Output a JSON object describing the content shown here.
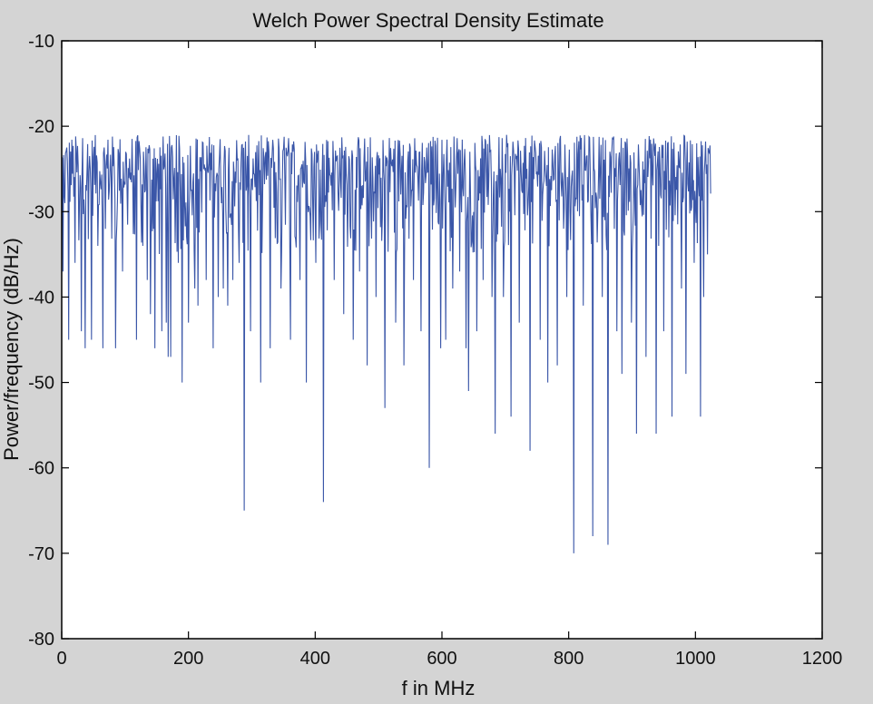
{
  "chart_data": {
    "type": "line",
    "title": "Welch Power Spectral Density Estimate",
    "xlabel": "f in MHz",
    "ylabel": "Power/frequency (dB/Hz)",
    "xlim": [
      0,
      1200
    ],
    "ylim": [
      -80,
      -10
    ],
    "x_ticks": [
      0,
      200,
      400,
      600,
      800,
      1000,
      1200
    ],
    "y_ticks": [
      -10,
      -20,
      -30,
      -40,
      -50,
      -60,
      -70,
      -80
    ],
    "x_tick_labels": [
      "0",
      "200",
      "400",
      "600",
      "800",
      "1000",
      "1200"
    ],
    "y_tick_labels": [
      "-10",
      "-20",
      "-30",
      "-40",
      "-50",
      "-60",
      "-70",
      "-80"
    ],
    "grid": false,
    "line_color": "#3a56a8",
    "background": "#d4d4d4",
    "plot_background": "#ffffff",
    "series": [
      {
        "x_start": 0,
        "x_end": 1024,
        "baseline_range": [
          -31,
          -21
        ],
        "notches": [
          {
            "x": 2,
            "y": -37
          },
          {
            "x": 5,
            "y": -29
          },
          {
            "x": 11,
            "y": -45
          },
          {
            "x": 21,
            "y": -36
          },
          {
            "x": 31,
            "y": -44
          },
          {
            "x": 37,
            "y": -46
          },
          {
            "x": 47,
            "y": -45
          },
          {
            "x": 57,
            "y": -34
          },
          {
            "x": 65,
            "y": -46
          },
          {
            "x": 85,
            "y": -46
          },
          {
            "x": 96,
            "y": -37
          },
          {
            "x": 118,
            "y": -45
          },
          {
            "x": 128,
            "y": -34
          },
          {
            "x": 135,
            "y": -38
          },
          {
            "x": 140,
            "y": -42
          },
          {
            "x": 147,
            "y": -46
          },
          {
            "x": 158,
            "y": -44
          },
          {
            "x": 165,
            "y": -43
          },
          {
            "x": 168,
            "y": -47
          },
          {
            "x": 172,
            "y": -47
          },
          {
            "x": 184,
            "y": -36
          },
          {
            "x": 190,
            "y": -50
          },
          {
            "x": 200,
            "y": -43
          },
          {
            "x": 210,
            "y": -39
          },
          {
            "x": 215,
            "y": -41
          },
          {
            "x": 228,
            "y": -38
          },
          {
            "x": 239,
            "y": -46
          },
          {
            "x": 247,
            "y": -40
          },
          {
            "x": 255,
            "y": -39
          },
          {
            "x": 262,
            "y": -41
          },
          {
            "x": 270,
            "y": -38
          },
          {
            "x": 280,
            "y": -36
          },
          {
            "x": 288,
            "y": -65
          },
          {
            "x": 298,
            "y": -44
          },
          {
            "x": 314,
            "y": -50
          },
          {
            "x": 329,
            "y": -46
          },
          {
            "x": 346,
            "y": -39
          },
          {
            "x": 361,
            "y": -45
          },
          {
            "x": 376,
            "y": -38
          },
          {
            "x": 386,
            "y": -50
          },
          {
            "x": 401,
            "y": -36
          },
          {
            "x": 413,
            "y": -64
          },
          {
            "x": 430,
            "y": -38
          },
          {
            "x": 445,
            "y": -42
          },
          {
            "x": 460,
            "y": -45
          },
          {
            "x": 470,
            "y": -37
          },
          {
            "x": 482,
            "y": -48
          },
          {
            "x": 496,
            "y": -40
          },
          {
            "x": 510,
            "y": -53
          },
          {
            "x": 527,
            "y": -43
          },
          {
            "x": 540,
            "y": -48
          },
          {
            "x": 555,
            "y": -38
          },
          {
            "x": 567,
            "y": -44
          },
          {
            "x": 580,
            "y": -60
          },
          {
            "x": 598,
            "y": -46
          },
          {
            "x": 606,
            "y": -45
          },
          {
            "x": 617,
            "y": -39
          },
          {
            "x": 628,
            "y": -37
          },
          {
            "x": 638,
            "y": -46
          },
          {
            "x": 642,
            "y": -51
          },
          {
            "x": 655,
            "y": -44
          },
          {
            "x": 665,
            "y": -38
          },
          {
            "x": 679,
            "y": -40
          },
          {
            "x": 684,
            "y": -56
          },
          {
            "x": 697,
            "y": -40
          },
          {
            "x": 709,
            "y": -54
          },
          {
            "x": 722,
            "y": -43
          },
          {
            "x": 739,
            "y": -58
          },
          {
            "x": 755,
            "y": -45
          },
          {
            "x": 767,
            "y": -50
          },
          {
            "x": 782,
            "y": -48
          },
          {
            "x": 797,
            "y": -40
          },
          {
            "x": 808,
            "y": -70
          },
          {
            "x": 823,
            "y": -41
          },
          {
            "x": 838,
            "y": -68
          },
          {
            "x": 853,
            "y": -40
          },
          {
            "x": 862,
            "y": -69
          },
          {
            "x": 876,
            "y": -44
          },
          {
            "x": 884,
            "y": -49
          },
          {
            "x": 899,
            "y": -43
          },
          {
            "x": 907,
            "y": -56
          },
          {
            "x": 922,
            "y": -47
          },
          {
            "x": 938,
            "y": -56
          },
          {
            "x": 950,
            "y": -44
          },
          {
            "x": 963,
            "y": -54
          },
          {
            "x": 978,
            "y": -39
          },
          {
            "x": 985,
            "y": -49
          },
          {
            "x": 998,
            "y": -36
          },
          {
            "x": 1008,
            "y": -54
          },
          {
            "x": 1013,
            "y": -40
          },
          {
            "x": 1019,
            "y": -35
          }
        ]
      }
    ]
  }
}
